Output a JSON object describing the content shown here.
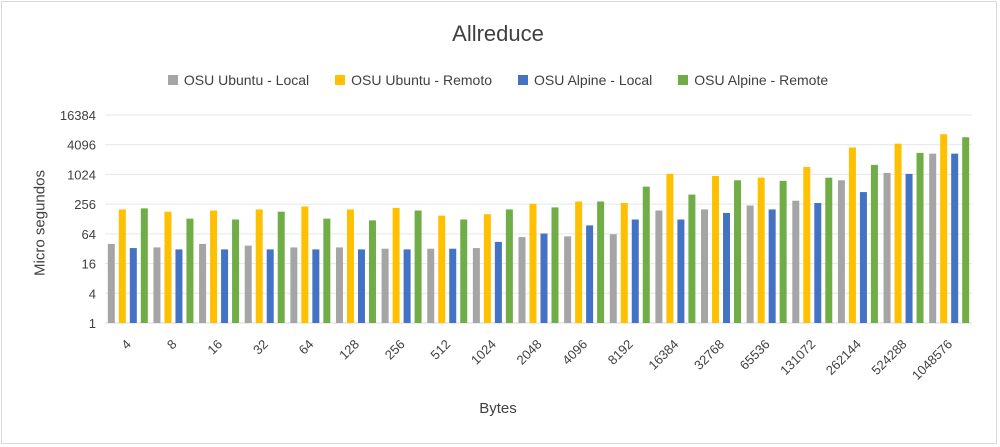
{
  "chart_data": {
    "type": "bar",
    "title": "Allreduce",
    "xlabel": "Bytes",
    "ylabel": "Micro segundos",
    "y_scale": "log2",
    "ylim": [
      1,
      16384
    ],
    "yticks": [
      "1",
      "4",
      "16",
      "64",
      "256",
      "1024",
      "4096",
      "16384"
    ],
    "grid": true,
    "legend_position": "top",
    "categories": [
      "4",
      "8",
      "16",
      "32",
      "64",
      "128",
      "256",
      "512",
      "1024",
      "2048",
      "4096",
      "8192",
      "16384",
      "32768",
      "65536",
      "131072",
      "262144",
      "524288",
      "1048576"
    ],
    "series": [
      {
        "name": "OSU Ubuntu - Local",
        "color": "#a5a5a5",
        "values": [
          40,
          34,
          40,
          37,
          34,
          34,
          32,
          32,
          33,
          55,
          57,
          63,
          190,
          200,
          240,
          300,
          780,
          1100,
          2700
        ]
      },
      {
        "name": "OSU Ubuntu - Remoto",
        "color": "#ffc000",
        "values": [
          200,
          180,
          190,
          200,
          230,
          200,
          215,
          150,
          160,
          260,
          290,
          270,
          1050,
          950,
          880,
          1450,
          3600,
          4300,
          6700
        ]
      },
      {
        "name": "OSU Alpine - Local",
        "color": "#4472c4",
        "values": [
          33,
          31,
          31,
          31,
          31,
          31,
          31,
          32,
          44,
          65,
          95,
          125,
          125,
          170,
          200,
          270,
          450,
          1050,
          2700
        ]
      },
      {
        "name": "OSU Alpine - Remote",
        "color": "#70ad47",
        "values": [
          210,
          130,
          125,
          180,
          130,
          120,
          190,
          125,
          200,
          220,
          290,
          580,
          400,
          780,
          760,
          880,
          1600,
          2800,
          5800
        ]
      }
    ]
  }
}
